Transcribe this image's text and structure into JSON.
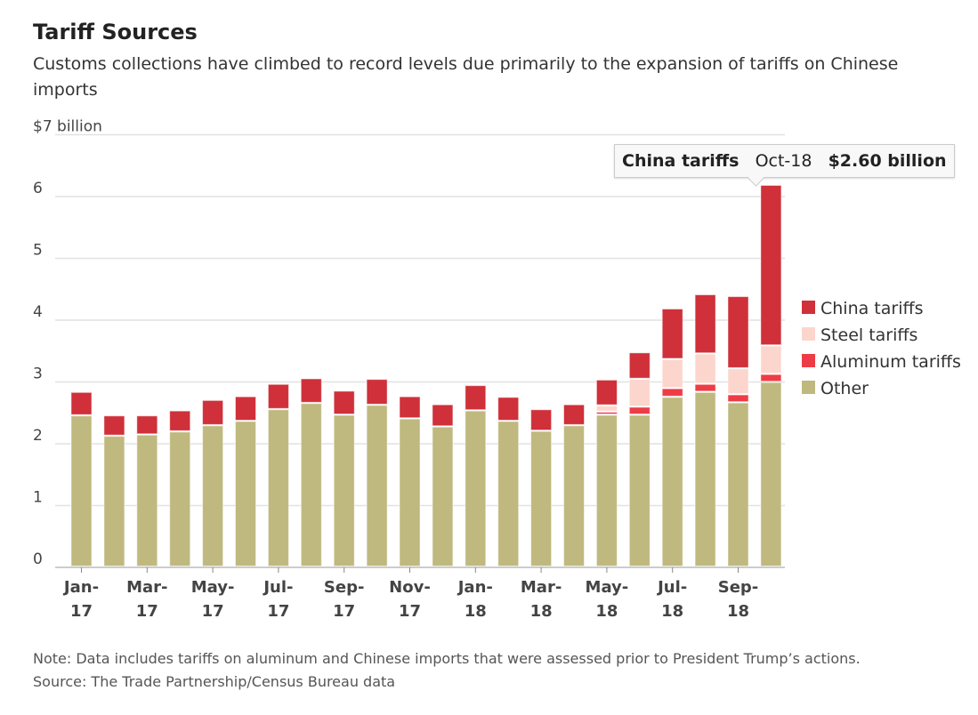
{
  "chart_data": {
    "type": "bar",
    "stacked": true,
    "title": "Tariff Sources",
    "subtitle": "Customs collections have climbed to record levels due primarily to the expansion of tariffs on Chinese imports",
    "ylabel": "",
    "y_unit_label": "$7 billion",
    "ylim": [
      0,
      7
    ],
    "yticks": [
      "0",
      "1",
      "2",
      "3",
      "4",
      "5",
      "6"
    ],
    "grid": true,
    "legend_position": "right",
    "categories": [
      "Jan-17",
      "Feb-17",
      "Mar-17",
      "Apr-17",
      "May-17",
      "Jun-17",
      "Jul-17",
      "Aug-17",
      "Sep-17",
      "Oct-17",
      "Nov-17",
      "Dec-17",
      "Jan-18",
      "Feb-18",
      "Mar-18",
      "Apr-18",
      "May-18",
      "Jun-18",
      "Jul-18",
      "Aug-18",
      "Sep-18",
      "Oct-18"
    ],
    "xtick_labels": [
      [
        "Jan-",
        "17"
      ],
      [
        "Mar-",
        "17"
      ],
      [
        "May-",
        "17"
      ],
      [
        "Jul-",
        "17"
      ],
      [
        "Sep-",
        "17"
      ],
      [
        "Nov-",
        "17"
      ],
      [
        "Jan-",
        "18"
      ],
      [
        "Mar-",
        "18"
      ],
      [
        "May-",
        "18"
      ],
      [
        "Jul-",
        "18"
      ],
      [
        "Sep-",
        "18"
      ]
    ],
    "series": [
      {
        "name": "Other",
        "color": "#bfb97f",
        "values": [
          2.45,
          2.12,
          2.14,
          2.19,
          2.29,
          2.36,
          2.55,
          2.65,
          2.46,
          2.62,
          2.4,
          2.27,
          2.53,
          2.36,
          2.2,
          2.29,
          2.46,
          2.46,
          2.75,
          2.83,
          2.66,
          2.99
        ]
      },
      {
        "name": "Aluminum tariffs",
        "color": "#ee3c46",
        "values": [
          0,
          0,
          0,
          0,
          0,
          0,
          0,
          0,
          0,
          0,
          0,
          0,
          0,
          0,
          0,
          0,
          0.05,
          0.13,
          0.14,
          0.13,
          0.13,
          0.13
        ]
      },
      {
        "name": "Steel tariffs",
        "color": "#fcd5cc",
        "values": [
          0,
          0,
          0,
          0,
          0,
          0,
          0,
          0,
          0,
          0,
          0,
          0,
          0,
          0,
          0,
          0,
          0.1,
          0.45,
          0.47,
          0.49,
          0.42,
          0.46
        ]
      },
      {
        "name": "China tariffs",
        "color": "#cf3039",
        "values": [
          0.38,
          0.33,
          0.31,
          0.34,
          0.41,
          0.4,
          0.41,
          0.4,
          0.39,
          0.42,
          0.36,
          0.36,
          0.41,
          0.39,
          0.35,
          0.34,
          0.42,
          0.43,
          0.82,
          0.96,
          1.17,
          2.6
        ]
      }
    ],
    "legend_order": [
      "China tariffs",
      "Steel tariffs",
      "Aluminum tariffs",
      "Other"
    ],
    "tooltip": {
      "series": "China tariffs",
      "category": "Oct-18",
      "value": "$2.60 billion"
    }
  },
  "note": "Note: Data includes tariffs on aluminum and Chinese imports that were assessed prior to President Trump’s actions.",
  "source": "Source: The Trade Partnership/Census Bureau data"
}
